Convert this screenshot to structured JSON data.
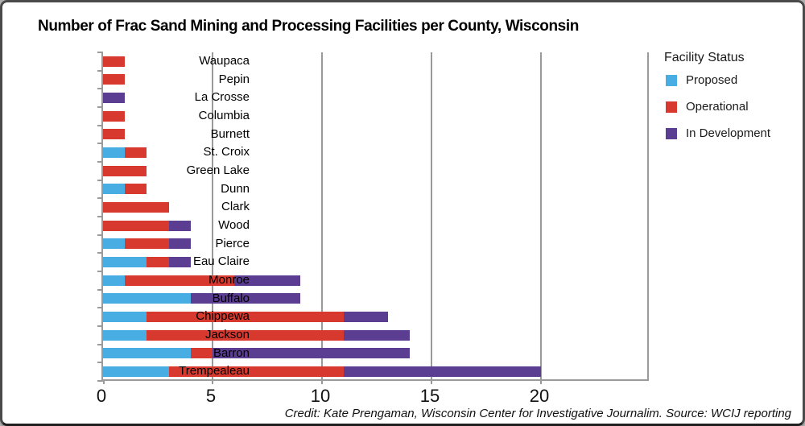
{
  "title": "Number of Frac Sand Mining and Processing Facilities per County, Wisconsin",
  "legend": {
    "title": "Facility Status",
    "items": [
      {
        "label": "Proposed",
        "color": "#47ADE2"
      },
      {
        "label": "Operational",
        "color": "#D8392F"
      },
      {
        "label": "In Development",
        "color": "#5B3D91"
      }
    ]
  },
  "credit": "Credit: Kate Prengaman, Wisconsin Center for Investigative Journalim.  Source: WCIJ reporting",
  "colors": {
    "axis_gray": "#9a9a9a",
    "proposed_blue": "#47ADE2",
    "operational_red": "#D8392F",
    "in_development_purple": "#5B3D91"
  },
  "chart_data": {
    "type": "bar",
    "orientation": "horizontal",
    "stacked": true,
    "title": "Number of Frac Sand Mining and Processing Facilities per County, Wisconsin",
    "xlabel": "",
    "ylabel": "",
    "xlim": [
      0,
      25
    ],
    "x_ticks": [
      0,
      5,
      10,
      15,
      20
    ],
    "grid": true,
    "legend_title": "Facility Status",
    "legend_position": "right",
    "categories": [
      "Waupaca",
      "Pepin",
      "La Crosse",
      "Columbia",
      "Burnett",
      "St. Croix",
      "Green Lake",
      "Dunn",
      "Clark",
      "Wood",
      "Pierce",
      "Eau Claire",
      "Monroe",
      "Buffalo",
      "Chippewa",
      "Jackson",
      "Barron",
      "Trempealeau"
    ],
    "series": [
      {
        "name": "Proposed",
        "color": "#47ADE2",
        "values": [
          0,
          0,
          0,
          0,
          0,
          1,
          0,
          1,
          0,
          0,
          1,
          2,
          1,
          4,
          2,
          2,
          4,
          3
        ]
      },
      {
        "name": "Operational",
        "color": "#D8392F",
        "values": [
          1,
          1,
          0,
          1,
          1,
          1,
          2,
          1,
          3,
          3,
          2,
          1,
          5,
          0,
          9,
          9,
          1,
          8
        ]
      },
      {
        "name": "In Development",
        "color": "#5B3D91",
        "values": [
          0,
          0,
          1,
          0,
          0,
          0,
          0,
          0,
          0,
          1,
          1,
          1,
          3,
          5,
          2,
          3,
          9,
          9
        ]
      }
    ],
    "totals": [
      1,
      1,
      1,
      1,
      1,
      2,
      2,
      2,
      3,
      4,
      4,
      4,
      9,
      9,
      13,
      14,
      14,
      20
    ]
  }
}
